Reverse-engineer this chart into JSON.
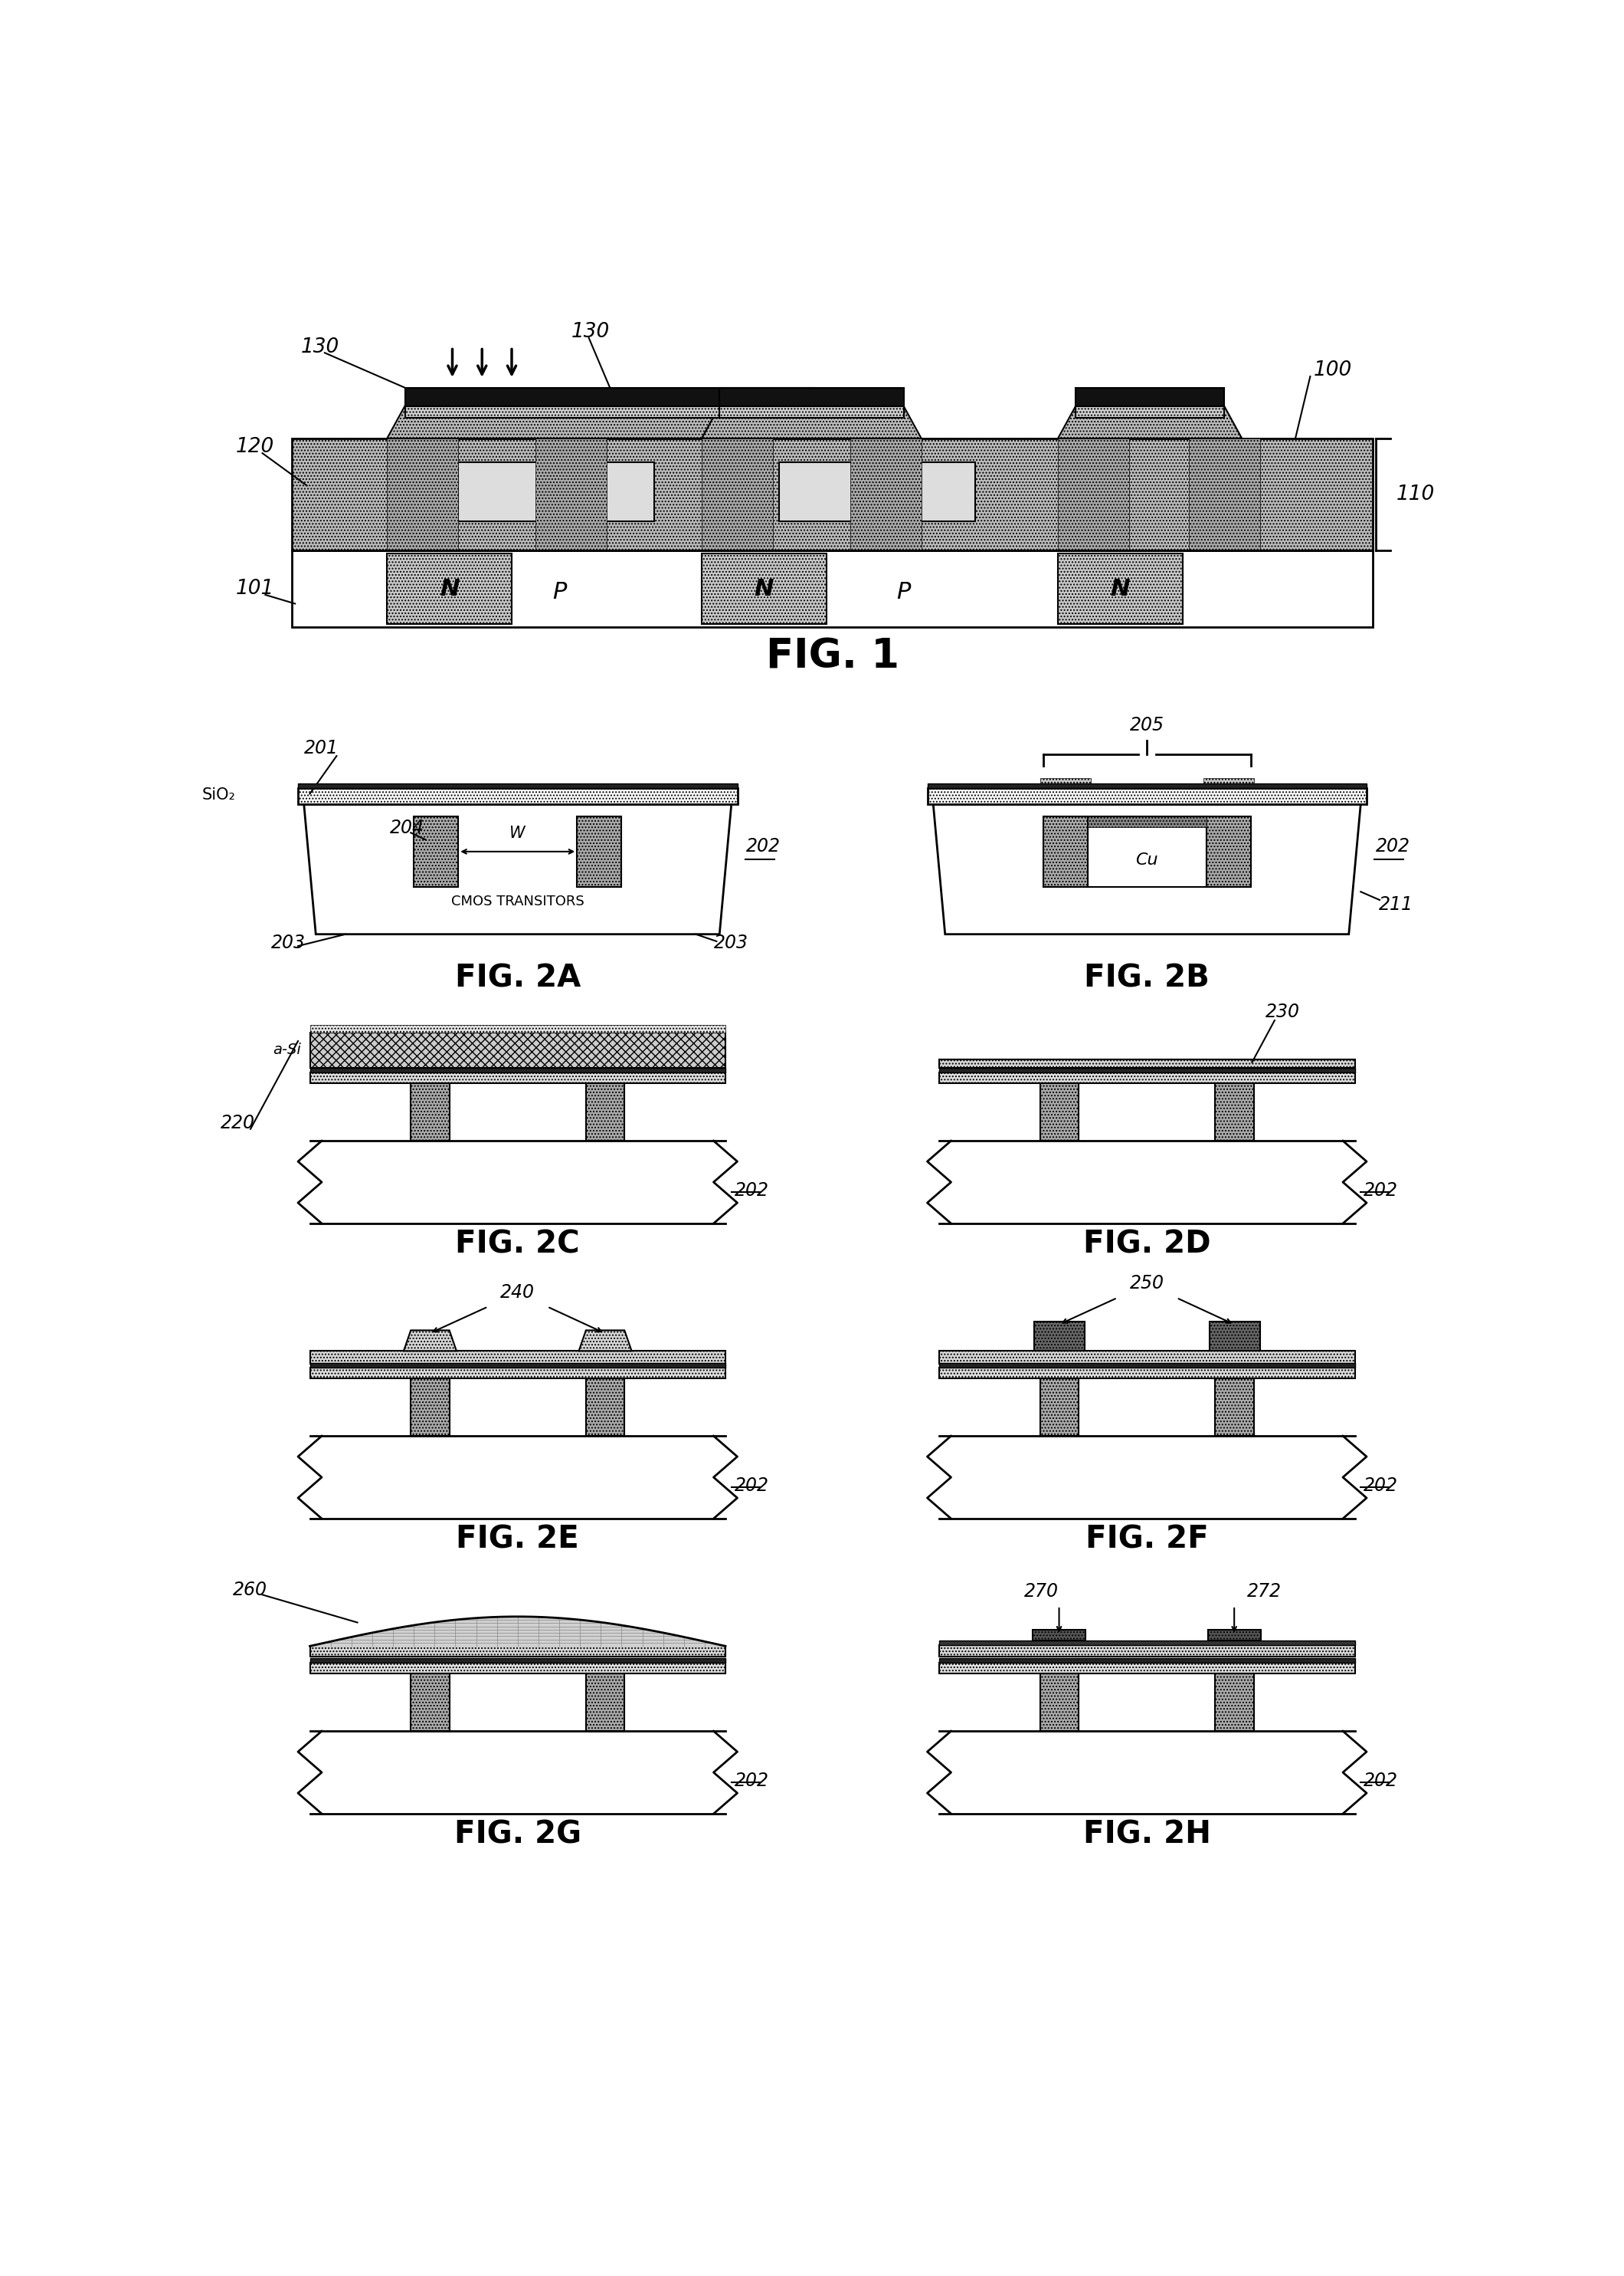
{
  "fig1_label": "FIG. 1",
  "fig2a_label": "FIG. 2A",
  "fig2b_label": "FIG. 2B",
  "fig2c_label": "FIG. 2C",
  "fig2d_label": "FIG. 2D",
  "fig2e_label": "FIG. 2E",
  "fig2f_label": "FIG. 2F",
  "fig2g_label": "FIG. 2G",
  "fig2h_label": "FIG. 2H",
  "c_black": "#000000",
  "c_white": "#ffffff",
  "c_dark_gray": "#555555",
  "c_med_gray": "#888888",
  "c_light_gray": "#bbbbbb",
  "c_vlight_gray": "#dddddd",
  "c_bump_dark": "#888888",
  "c_substrate_gray": "#999999",
  "c_n_well": "#c8c8c8",
  "c_dielectric": "#bbbbbb",
  "c_col_gray": "#aaaaaa",
  "c_cu": "#ffffff"
}
